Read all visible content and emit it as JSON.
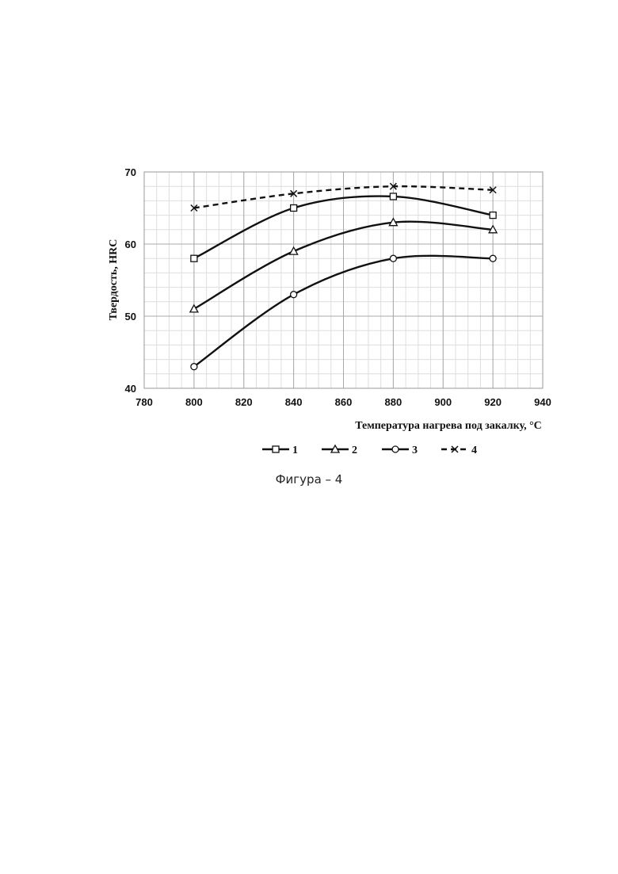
{
  "chart_data": {
    "type": "line",
    "xlabel": "Температура нагрева под закалку, °С",
    "ylabel": "Твердость, HRC",
    "xlim": [
      780,
      940
    ],
    "ylim": [
      40,
      70
    ],
    "x_ticks": [
      "780",
      "800",
      "820",
      "840",
      "860",
      "880",
      "900",
      "920",
      "940"
    ],
    "y_ticks": [
      "40",
      "50",
      "60",
      "70"
    ],
    "grid": "on",
    "legend_position": "bottom",
    "x": [
      800,
      840,
      880,
      920
    ],
    "series": [
      {
        "name": "1",
        "marker": "square",
        "dash": "solid",
        "values": [
          58,
          65,
          66.6,
          64
        ]
      },
      {
        "name": "2",
        "marker": "triangle",
        "dash": "solid",
        "values": [
          51,
          59,
          63,
          62
        ]
      },
      {
        "name": "3",
        "marker": "circle",
        "dash": "solid",
        "values": [
          43,
          53,
          58,
          58
        ]
      },
      {
        "name": "4",
        "marker": "cross",
        "dash": "dashed",
        "values": [
          65,
          67,
          68,
          67.5
        ]
      }
    ]
  },
  "caption": "Фигура – 4"
}
